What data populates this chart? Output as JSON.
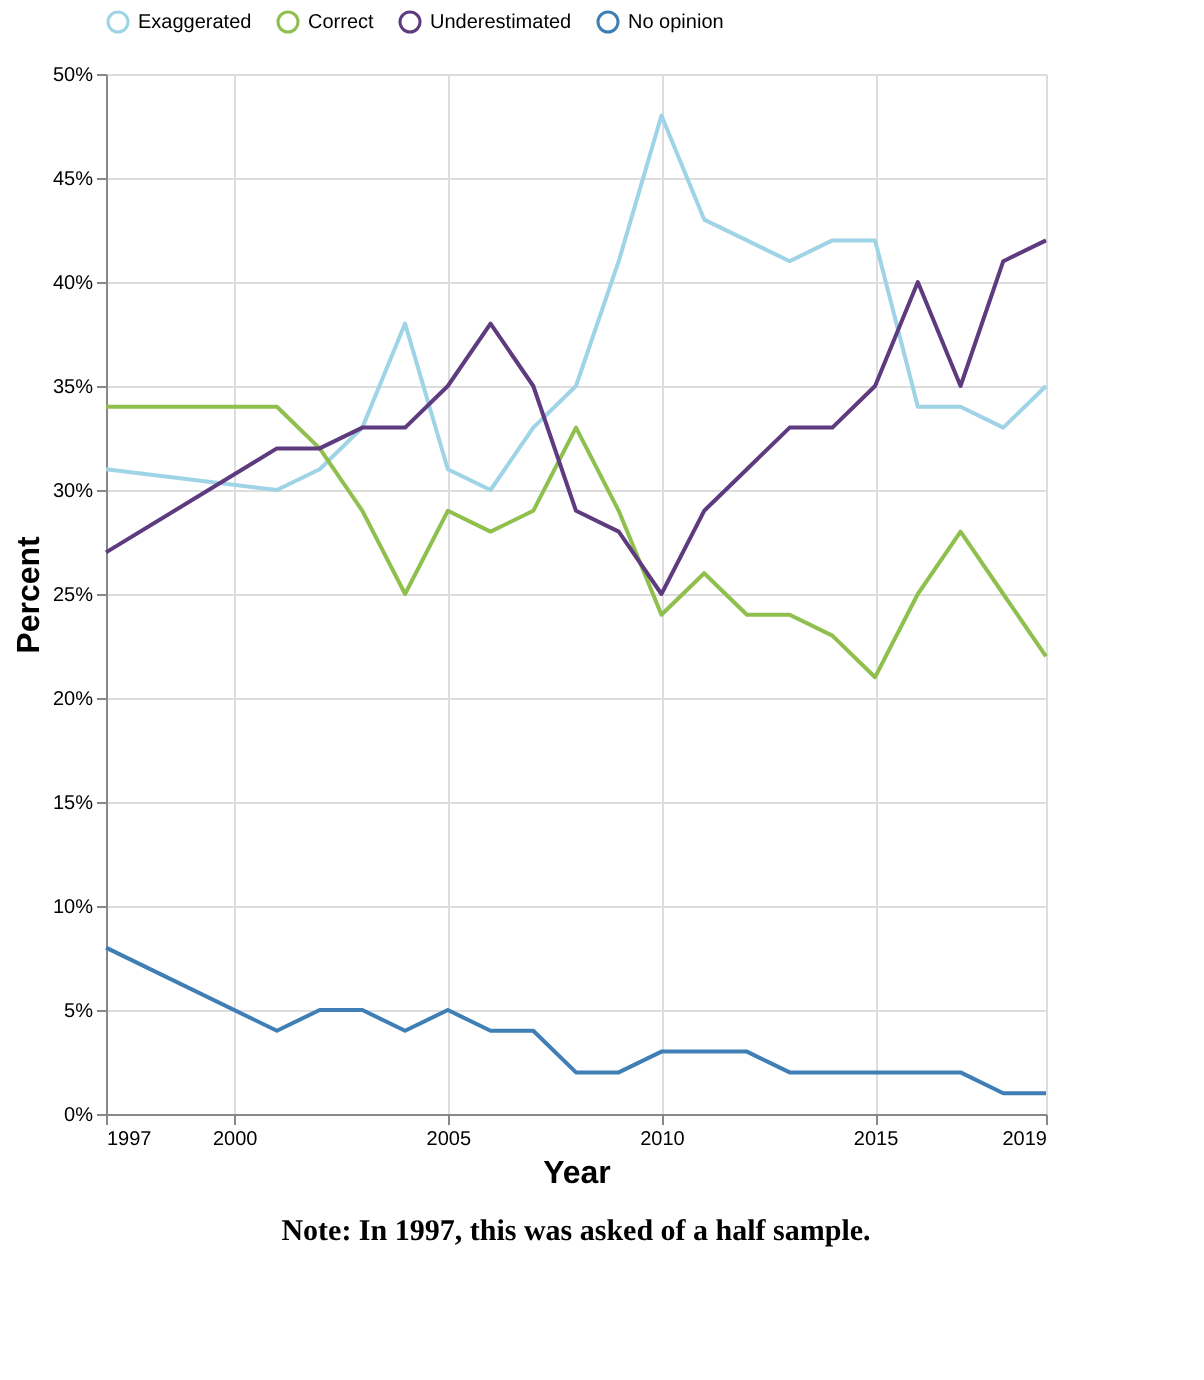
{
  "chart_data": {
    "type": "line",
    "xlabel": "Year",
    "ylabel": "Percent",
    "x": [
      1997,
      2001,
      2002,
      2003,
      2004,
      2005,
      2006,
      2007,
      2008,
      2009,
      2010,
      2011,
      2012,
      2013,
      2014,
      2015,
      2016,
      2017,
      2018,
      2019
    ],
    "series": [
      {
        "name": "Exaggerated",
        "color": "#9fd3e6",
        "values": [
          31,
          30,
          31,
          33,
          38,
          31,
          30,
          33,
          35,
          41,
          48,
          43,
          42,
          41,
          42,
          42,
          34,
          34,
          33,
          35
        ]
      },
      {
        "name": "Correct",
        "color": "#8fbf4d",
        "values": [
          34,
          34,
          32,
          29,
          25,
          29,
          28,
          29,
          33,
          29,
          24,
          26,
          24,
          24,
          23,
          21,
          25,
          28,
          25,
          22
        ]
      },
      {
        "name": "Underestimated",
        "color": "#5e3a7e",
        "values": [
          27,
          32,
          32,
          33,
          33,
          35,
          38,
          35,
          29,
          28,
          25,
          29,
          31,
          33,
          33,
          35,
          40,
          35,
          41,
          42
        ]
      },
      {
        "name": "No opinion",
        "color": "#3f7fb5",
        "values": [
          8,
          4,
          5,
          5,
          4,
          5,
          4,
          4,
          2,
          2,
          3,
          3,
          3,
          2,
          2,
          2,
          2,
          2,
          1,
          1
        ]
      }
    ],
    "xlim": [
      1997,
      2019
    ],
    "xticks": [
      1997,
      2000,
      2005,
      2010,
      2015,
      2019
    ],
    "ylim": [
      0,
      50
    ],
    "yticks": [
      {
        "value": 0,
        "label": "0%"
      },
      {
        "value": 5,
        "label": "5%"
      },
      {
        "value": 10,
        "label": "10%"
      },
      {
        "value": 15,
        "label": "15%"
      },
      {
        "value": 20,
        "label": "20%"
      },
      {
        "value": 25,
        "label": "25%"
      },
      {
        "value": 30,
        "label": "30%"
      },
      {
        "value": 35,
        "label": "35%"
      },
      {
        "value": 40,
        "label": "40%"
      },
      {
        "value": 45,
        "label": "45%"
      },
      {
        "value": 50,
        "label": "50%"
      }
    ],
    "grid": true,
    "legend": "top",
    "marker": "none",
    "line_style": "solid",
    "annotations": [
      "Note: In 1997, this was asked of a half sample."
    ]
  }
}
